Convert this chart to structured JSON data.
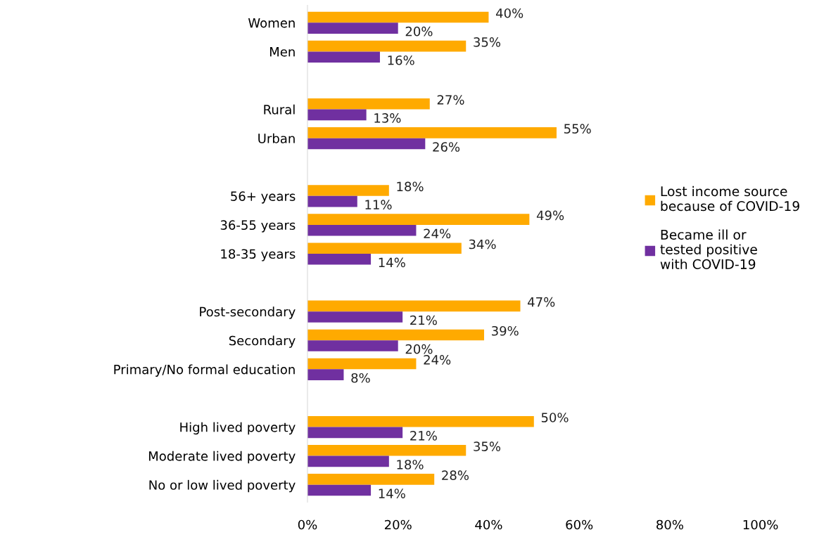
{
  "chart_data": {
    "type": "bar",
    "orientation": "horizontal",
    "categories": [
      "Women",
      "Men",
      null,
      "Rural",
      "Urban",
      null,
      "56+ years",
      "36-55 years",
      "18-35 years",
      null,
      "Post-secondary",
      "Secondary",
      "Primary/No formal education",
      null,
      "High lived poverty",
      "Moderate lived poverty",
      "No or low lived poverty"
    ],
    "series": [
      {
        "name": "Lost income source because of COVID-19",
        "color": "#ffaa00",
        "values": [
          40,
          35,
          null,
          27,
          55,
          null,
          18,
          49,
          34,
          null,
          47,
          39,
          24,
          null,
          50,
          35,
          28
        ],
        "value_labels": [
          "40%",
          "35%",
          null,
          "27%",
          "55%",
          null,
          "18%",
          "49%",
          "34%",
          null,
          "47%",
          "39%",
          "24%",
          null,
          "50%",
          "35%",
          "28%"
        ]
      },
      {
        "name": "Became ill or tested positive with COVID-19",
        "color": "#7030a0",
        "values": [
          20,
          16,
          null,
          13,
          26,
          null,
          11,
          24,
          14,
          null,
          21,
          20,
          8,
          null,
          21,
          18,
          14
        ],
        "value_labels": [
          "20%",
          "16%",
          null,
          "13%",
          "26%",
          null,
          "11%",
          "24%",
          "14%",
          null,
          "21%",
          "20%",
          "8%",
          null,
          "21%",
          "18%",
          "14%"
        ]
      }
    ],
    "xlim": [
      0,
      100
    ],
    "xticks": [
      {
        "value": 0,
        "label": "0%"
      },
      {
        "value": 20,
        "label": "20%"
      },
      {
        "value": 40,
        "label": "40%"
      },
      {
        "value": 60,
        "label": "60%"
      },
      {
        "value": 80,
        "label": "80%"
      },
      {
        "value": 100,
        "label": "100%"
      }
    ],
    "grid": false,
    "legend": "right"
  }
}
